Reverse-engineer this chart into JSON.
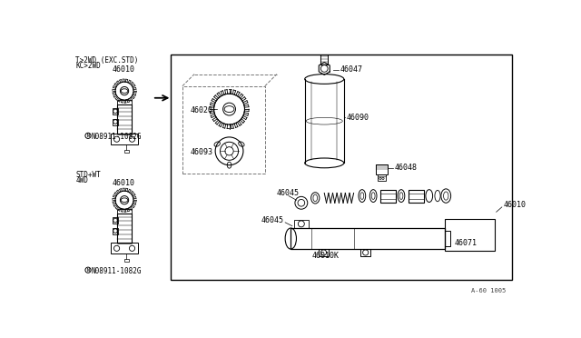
{
  "bg_color": "#ffffff",
  "border_color": "#000000",
  "line_color": "#000000",
  "text_color": "#000000",
  "fig_width": 6.4,
  "fig_height": 3.72,
  "dpi": 100,
  "diagram_ref": "A-60 1005",
  "labels": {
    "top_left_line1": "T>2WD (EXC.STD)",
    "top_left_line2": "KC>2WD",
    "bottom_left_line1": "STD+WT",
    "bottom_left_line2": "4WD",
    "part_46010_top": "46010",
    "part_46010_bottom": "46010",
    "part_08911_top": "N08911-1082G",
    "part_08911_bottom": "N08911-1082G",
    "part_46020": "46020",
    "part_46093": "46093",
    "part_46047": "46047",
    "part_46090": "46090",
    "part_46048": "46048",
    "part_46045_top": "46045",
    "part_46045_bottom": "46045",
    "part_46010K": "46010K",
    "part_46010_right": "46010",
    "part_46071": "46071"
  }
}
